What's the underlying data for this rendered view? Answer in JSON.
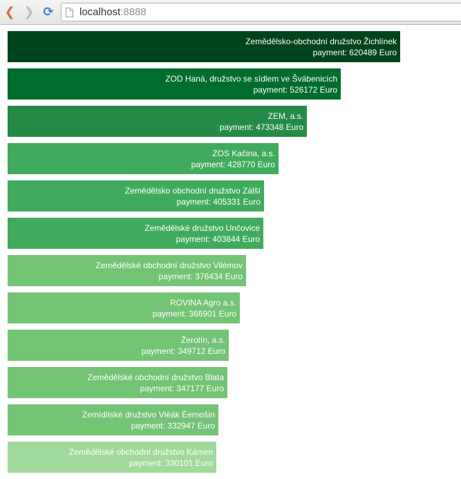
{
  "browser": {
    "url_host": "localhost",
    "url_port": ":8888",
    "icons": [
      "back-arrow-icon",
      "forward-arrow-icon",
      "reload-icon",
      "page-icon"
    ],
    "back_color": "#d86a3a",
    "forward_color": "#bdbdbd",
    "reload_color": "#3c7fc8"
  },
  "chart_data": {
    "type": "bar",
    "orientation": "horizontal",
    "payment_prefix": "payment: ",
    "payment_unit": " Euro",
    "xlim": [
      0,
      620489
    ],
    "categories": [
      "Zemědělsko-obchodní družstvo Žichlínek",
      "ZOD Haná, družstvo se sídlem ve Švábenicích",
      "ZEM, a.s.",
      "ZOS Kačina, a.s.",
      "Zemědělsko obchodní družstvo Zálší",
      "Zemědělské družstvo Unčovice",
      "Zemědělské obchodní družstvo Vilémov",
      "ROVINA Agro a.s.",
      "Žerotín, a.s.",
      "Zemědělské obchodní družstvo Blata",
      "Zemìdìlské družstvo Vlèák Èernošín",
      "Zemědělské obchodní družstvo Kámen"
    ],
    "values": [
      620489,
      526172,
      473348,
      428770,
      405331,
      403844,
      376434,
      366901,
      349712,
      347177,
      332947,
      330101
    ],
    "colors": [
      "#00441b",
      "#006d2c",
      "#238b45",
      "#41ab5d",
      "#41ab5d",
      "#41ab5d",
      "#74c476",
      "#74c476",
      "#74c476",
      "#74c476",
      "#74c476",
      "#a1d99b"
    ]
  }
}
